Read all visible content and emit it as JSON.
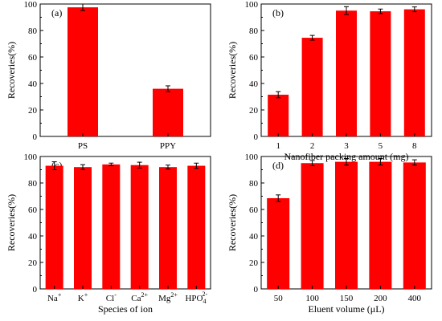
{
  "chart_data": [
    {
      "type": "bar",
      "panel_label": "(a)",
      "title": "",
      "xlabel": "",
      "ylabel": "Recoveries(%)",
      "ylim": [
        0,
        100
      ],
      "yticks": [
        0,
        20,
        40,
        60,
        80,
        100
      ],
      "categories": [
        {
          "text": "PS"
        },
        {
          "text": "PPY"
        }
      ],
      "values": [
        97.5,
        36
      ],
      "errors": [
        2.5,
        2.2
      ]
    },
    {
      "type": "bar",
      "panel_label": "(b)",
      "title": "",
      "xlabel": "Nanofiber packing amount (mg)",
      "ylabel": "Recoveries(%)",
      "ylim": [
        0,
        100
      ],
      "yticks": [
        0,
        20,
        40,
        60,
        80,
        100
      ],
      "categories": [
        {
          "text": "1"
        },
        {
          "text": "2"
        },
        {
          "text": "3"
        },
        {
          "text": "5"
        },
        {
          "text": "8"
        }
      ],
      "values": [
        31.5,
        74.5,
        95,
        94.5,
        96
      ],
      "errors": [
        2.3,
        1.8,
        3,
        1.7,
        1.8
      ]
    },
    {
      "type": "bar",
      "panel_label": "(c)",
      "title": "",
      "xlabel": "Species of ion",
      "ylabel": "Recoveries(%)",
      "ylim": [
        0,
        100
      ],
      "yticks": [
        0,
        20,
        40,
        60,
        80,
        100
      ],
      "categories": [
        {
          "text": "Na",
          "sup": "+"
        },
        {
          "text": "K",
          "sup": "+"
        },
        {
          "text": "Cl",
          "sup": "-"
        },
        {
          "text": "Ca",
          "sup": "2+"
        },
        {
          "text": "Mg",
          "sup": "2+"
        },
        {
          "text": "HPO",
          "sub": "4",
          "sup": "2-"
        }
      ],
      "values": [
        93,
        92,
        94,
        93.5,
        92,
        93
      ],
      "errors": [
        3,
        1.8,
        1,
        2.2,
        1.5,
        2
      ]
    },
    {
      "type": "bar",
      "panel_label": "(d)",
      "title": "",
      "xlabel": "Eluent volume (μL)",
      "ylabel": "Recoveries(%)",
      "ylim": [
        0,
        100
      ],
      "yticks": [
        0,
        20,
        40,
        60,
        80,
        100
      ],
      "categories": [
        {
          "text": "50"
        },
        {
          "text": "100"
        },
        {
          "text": "150"
        },
        {
          "text": "200"
        },
        {
          "text": "400"
        }
      ],
      "values": [
        68.5,
        95,
        96,
        96,
        95.5
      ],
      "errors": [
        2.5,
        2,
        2.5,
        2.5,
        2
      ]
    }
  ],
  "colors": {
    "bar": "#ff0000",
    "axis": "#000000"
  }
}
